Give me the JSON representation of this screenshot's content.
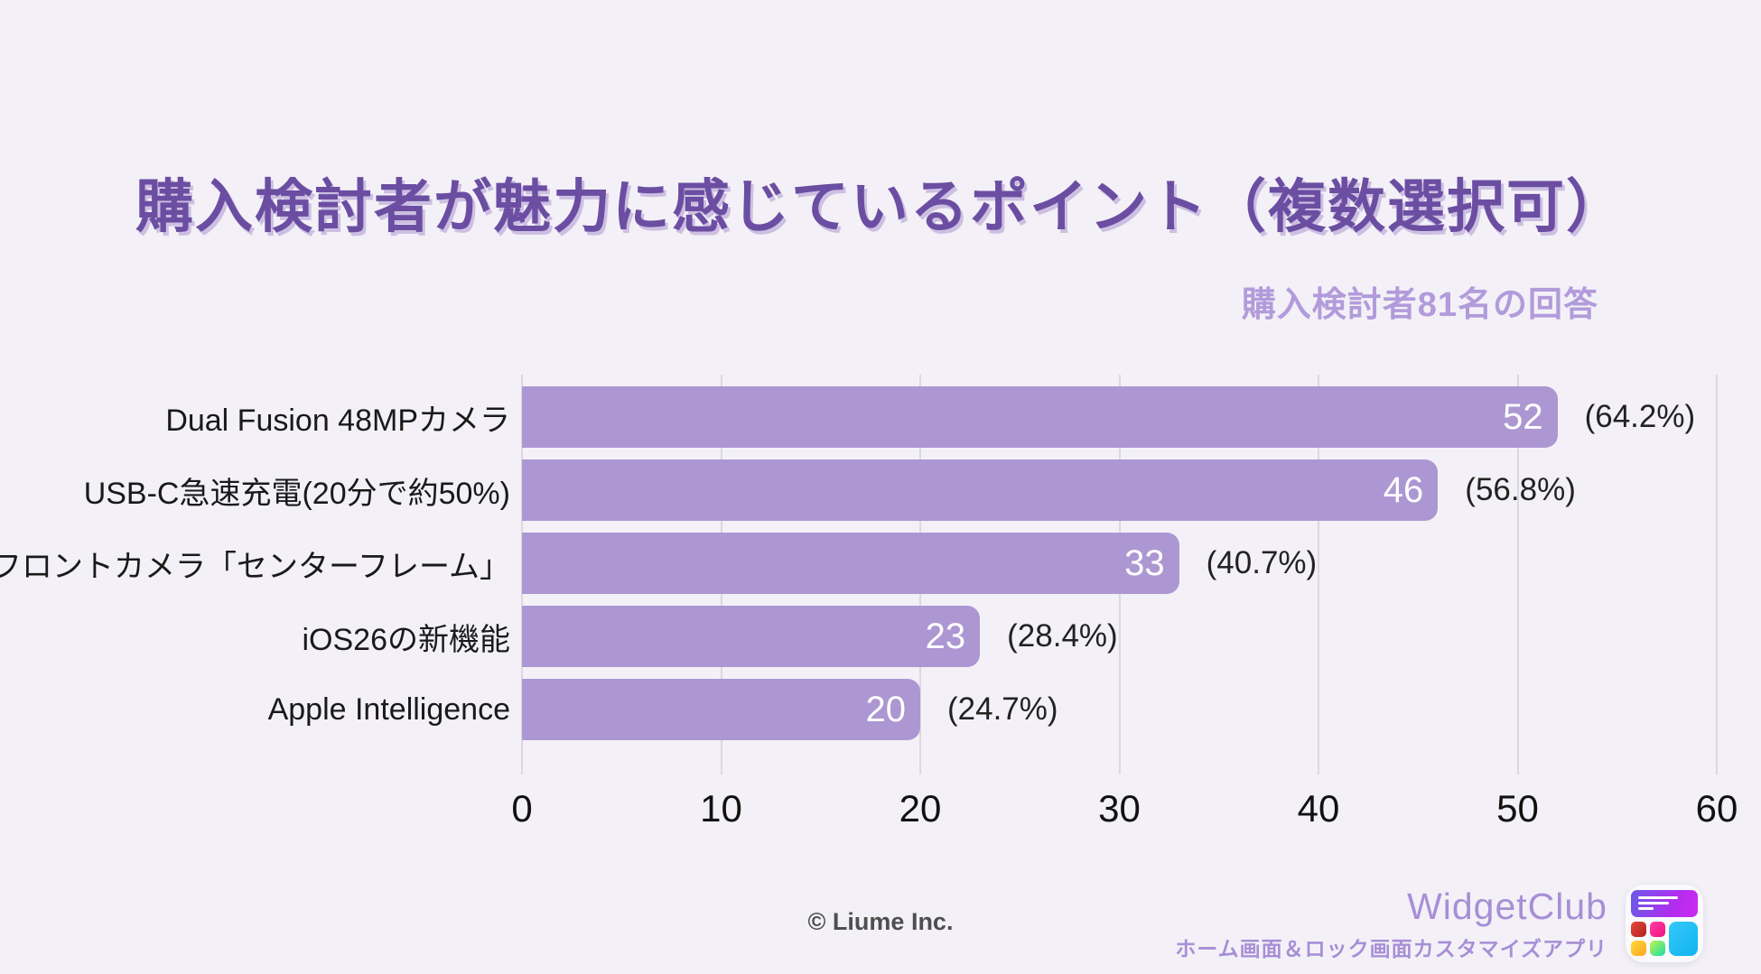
{
  "header": {
    "title": "購入検討者が魅力に感じているポイント（複数選択可）",
    "subtitle": "購入検討者81名の回答"
  },
  "chart_data": {
    "type": "bar",
    "orientation": "horizontal",
    "title": "購入検討者が魅力に感じているポイント（複数選択可）",
    "subtitle": "購入検討者81名の回答",
    "categories": [
      "Dual Fusion 48MPカメラ",
      "USB-C急速充電(20分で約50%)",
      "フロントカメラ「センターフレーム」",
      "iOS26の新機能",
      "Apple Intelligence"
    ],
    "values": [
      52,
      46,
      33,
      23,
      20
    ],
    "percent_labels": [
      "(64.2%)",
      "(56.8%)",
      "(40.7%)",
      "(28.4%)",
      "(24.7%)"
    ],
    "xticks": [
      0,
      10,
      20,
      30,
      40,
      50,
      60
    ],
    "xlim": [
      0,
      60
    ],
    "grid": true,
    "legend": "none"
  },
  "footer": {
    "copyright": "© Liume Inc.",
    "brand_name": "WidgetClub",
    "brand_tagline": "ホーム画面＆ロック画面カスタマイズアプリ"
  },
  "colors": {
    "background": "#F3F1F7",
    "title": "#6B4EA2",
    "subtitle": "#B29BDB",
    "bar": "#AC97D2",
    "bar_value_text": "#FFFFFF",
    "gridline": "#DBD8E1",
    "category_text": "#1A1A1A",
    "brand": "#A78FD6"
  }
}
